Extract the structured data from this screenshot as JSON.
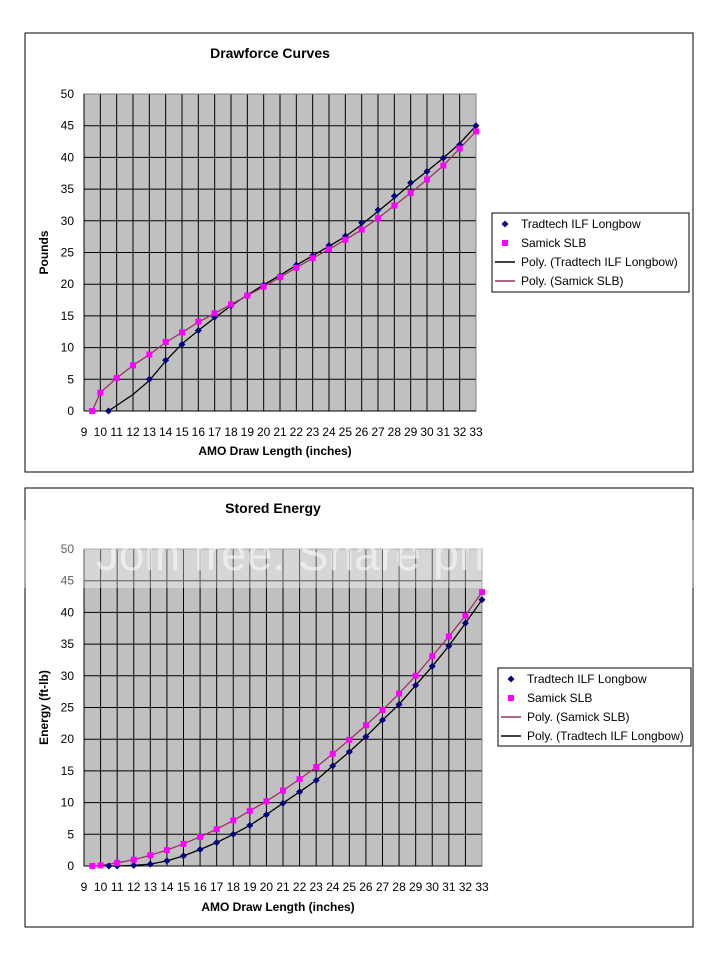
{
  "chart_data": [
    {
      "type": "scatter",
      "title": "Drawforce Curves",
      "xlabel": "AMO Draw Length (inches)",
      "ylabel": "Pounds",
      "xlim": [
        9,
        33
      ],
      "ylim": [
        0,
        50
      ],
      "x_ticks": [
        "9",
        "10",
        "11",
        "12",
        "13",
        "14",
        "15",
        "16",
        "17",
        "18",
        "19",
        "20",
        "21",
        "22",
        "23",
        "24",
        "25",
        "26",
        "27",
        "28",
        "29",
        "30",
        "31",
        "32",
        "33"
      ],
      "y_ticks": [
        "0",
        "5",
        "10",
        "15",
        "20",
        "25",
        "30",
        "35",
        "40",
        "45",
        "50"
      ],
      "grid": true,
      "legend_position": "right",
      "series": [
        {
          "name": "Tradtech ILF Longbow",
          "kind": "points",
          "marker": "diamond",
          "color": "#000080",
          "x": [
            10.5,
            13,
            14,
            15,
            16,
            17,
            18,
            19,
            20,
            21,
            22,
            23,
            24,
            25,
            26,
            27,
            28,
            29,
            30,
            31,
            32,
            33
          ],
          "y": [
            0,
            5,
            8,
            10.5,
            12.7,
            14.8,
            16.6,
            18.3,
            19.9,
            21.3,
            23,
            24.5,
            26.1,
            27.6,
            29.7,
            31.7,
            33.9,
            36,
            37.8,
            39.9,
            42,
            45
          ]
        },
        {
          "name": "Samick SLB",
          "kind": "points",
          "marker": "square",
          "color": "#ff00ff",
          "x": [
            9.5,
            10,
            11,
            12,
            13,
            14,
            15,
            16,
            17,
            18,
            19,
            20,
            21,
            22,
            23,
            24,
            25,
            26,
            27,
            28,
            29,
            30,
            31,
            32,
            33
          ],
          "y": [
            0,
            2.9,
            5.2,
            7.2,
            8.9,
            10.9,
            12.4,
            14.1,
            15.4,
            16.8,
            18.2,
            19.6,
            21.1,
            22.6,
            24.1,
            25.5,
            27,
            28.6,
            30.4,
            32.4,
            34.4,
            36.5,
            38.7,
            41.4,
            44.1
          ]
        },
        {
          "name": "Poly. (Tradtech ILF Longbow)",
          "kind": "line",
          "color": "#000000",
          "x": [
            10.5,
            12,
            13,
            14,
            15,
            16,
            17,
            18,
            19,
            20,
            21,
            22,
            23,
            24,
            25,
            26,
            27,
            28,
            29,
            30,
            31,
            32,
            33
          ],
          "y": [
            0,
            2.6,
            4.8,
            7.9,
            10.6,
            12.7,
            14.7,
            16.6,
            18.3,
            19.9,
            21.4,
            23,
            24.5,
            26,
            27.5,
            29.4,
            31.5,
            33.6,
            35.8,
            37.8,
            39.9,
            42.2,
            45
          ]
        },
        {
          "name": "Poly. (Samick SLB)",
          "kind": "line",
          "color": "#993366",
          "x": [
            9.5,
            10,
            11,
            12,
            13,
            14,
            15,
            16,
            17,
            18,
            19,
            20,
            21,
            22,
            23,
            24,
            25,
            26,
            27,
            28,
            29,
            30,
            31,
            32,
            33
          ],
          "y": [
            0,
            2.9,
            5.2,
            7.2,
            8.9,
            10.8,
            12.4,
            14,
            15.4,
            16.8,
            18.2,
            19.6,
            21.1,
            22.6,
            24.1,
            25.5,
            27,
            28.6,
            30.4,
            32.4,
            34.4,
            36.5,
            38.7,
            41.4,
            44.1
          ]
        }
      ]
    },
    {
      "type": "scatter",
      "title": "Stored Energy",
      "xlabel": "AMO Draw Length (inches)",
      "ylabel": "Energy (ft-lb)",
      "xlim": [
        9,
        33
      ],
      "ylim": [
        0,
        50
      ],
      "x_ticks": [
        "9",
        "10",
        "11",
        "12",
        "13",
        "14",
        "15",
        "16",
        "17",
        "18",
        "19",
        "20",
        "21",
        "22",
        "23",
        "24",
        "25",
        "26",
        "27",
        "28",
        "29",
        "30",
        "31",
        "32",
        "33"
      ],
      "y_ticks": [
        "0",
        "5",
        "10",
        "15",
        "20",
        "25",
        "30",
        "35",
        "40",
        "45",
        "50"
      ],
      "grid": true,
      "legend_position": "right",
      "series": [
        {
          "name": "Tradtech ILF Longbow",
          "kind": "points",
          "marker": "diamond",
          "color": "#000080",
          "x": [
            10.5,
            11,
            12,
            13,
            14,
            15,
            16,
            17,
            18,
            19,
            20,
            21,
            22,
            23,
            24,
            25,
            26,
            27,
            28,
            29,
            30,
            31,
            32,
            33
          ],
          "y": [
            0,
            0,
            0.1,
            0.3,
            0.8,
            1.6,
            2.6,
            3.7,
            5,
            6.4,
            8.1,
            9.9,
            11.7,
            13.5,
            15.8,
            18,
            20.4,
            23,
            25.5,
            28.5,
            31.5,
            34.7,
            38.3,
            42
          ]
        },
        {
          "name": "Samick SLB",
          "kind": "points",
          "marker": "square",
          "color": "#ff00ff",
          "x": [
            9.5,
            10,
            11,
            12,
            13,
            14,
            15,
            16,
            17,
            18,
            19,
            20,
            21,
            22,
            23,
            24,
            25,
            26,
            27,
            28,
            29,
            30,
            31,
            32,
            33
          ],
          "y": [
            0,
            0.1,
            0.5,
            1,
            1.7,
            2.5,
            3.5,
            4.6,
            5.8,
            7.2,
            8.7,
            10.2,
            11.9,
            13.7,
            15.6,
            17.7,
            19.9,
            22.2,
            24.6,
            27.2,
            30,
            33.1,
            36.2,
            39.5,
            43.2
          ]
        },
        {
          "name": "Poly. (Samick SLB)",
          "kind": "line",
          "color": "#993366",
          "x": [
            9.5,
            10,
            11,
            12,
            13,
            14,
            15,
            16,
            17,
            18,
            19,
            20,
            21,
            22,
            23,
            24,
            25,
            26,
            27,
            28,
            29,
            30,
            31,
            32,
            33
          ],
          "y": [
            0,
            0.1,
            0.5,
            1,
            1.7,
            2.5,
            3.5,
            4.6,
            5.8,
            7.2,
            8.7,
            10.2,
            11.9,
            13.7,
            15.6,
            17.7,
            19.9,
            22.2,
            24.6,
            27.2,
            30,
            33.1,
            36.2,
            39.5,
            43.2
          ]
        },
        {
          "name": "Poly. (Tradtech ILF Longbow)",
          "kind": "line",
          "color": "#000000",
          "x": [
            10.5,
            11,
            12,
            13,
            14,
            15,
            16,
            17,
            18,
            19,
            20,
            21,
            22,
            23,
            24,
            25,
            26,
            27,
            28,
            29,
            30,
            31,
            32,
            33
          ],
          "y": [
            0,
            0,
            0.1,
            0.3,
            0.8,
            1.6,
            2.6,
            3.7,
            5,
            6.4,
            8.1,
            9.9,
            11.7,
            13.5,
            15.8,
            18,
            20.4,
            23,
            25.5,
            28.5,
            31.5,
            34.7,
            38.3,
            42
          ]
        }
      ]
    }
  ],
  "watermark": {
    "text": "Join free. Share privately."
  },
  "colors": {
    "plot_bg": "#c0c0c0",
    "grid": "#000000",
    "tradtech": "#000080",
    "samick": "#ff00ff",
    "tradtech_fit": "#000000",
    "samick_fit": "#993366"
  }
}
